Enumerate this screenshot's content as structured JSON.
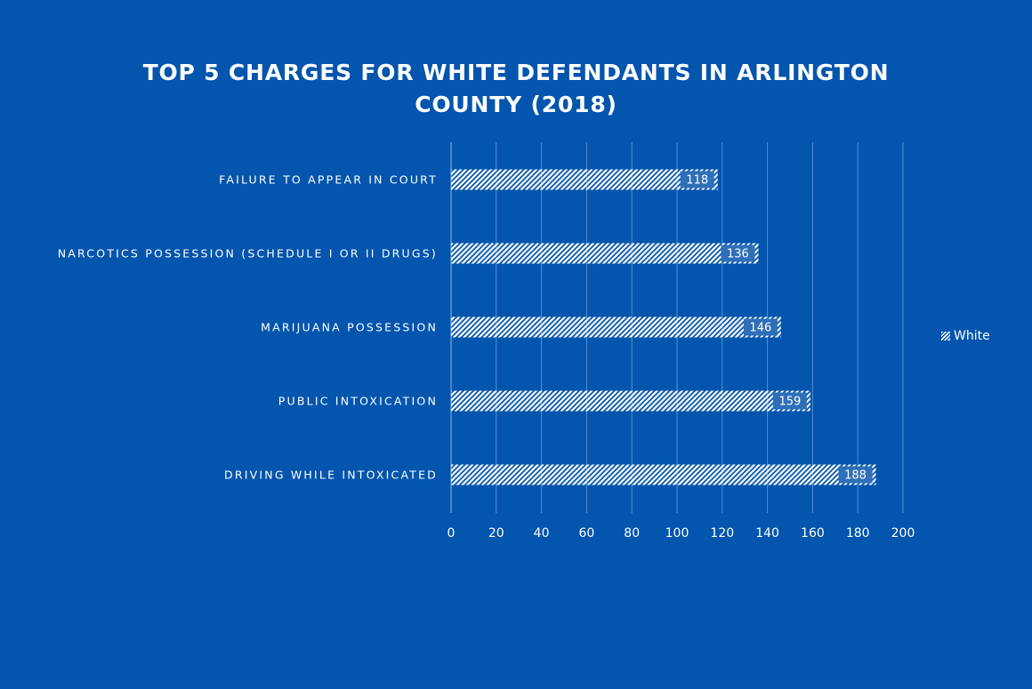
{
  "chart_data": {
    "type": "bar",
    "orientation": "horizontal",
    "title": "TOP 5 CHARGES FOR WHITE DEFENDANTS IN ARLINGTON COUNTY (2018)",
    "categories": [
      "FAILURE TO APPEAR IN COURT",
      "NARCOTICS POSSESSION (SCHEDULE I OR II DRUGS)",
      "MARIJUANA POSSESSION",
      "PUBLIC INTOXICATION",
      "DRIVING WHILE INTOXICATED"
    ],
    "series": [
      {
        "name": "White",
        "values": [
          118,
          136,
          146,
          159,
          188
        ]
      }
    ],
    "xlim": [
      0,
      200
    ],
    "xticks": [
      0,
      20,
      40,
      60,
      80,
      100,
      120,
      140,
      160,
      180,
      200
    ],
    "grid": "vertical",
    "legend_position": "right",
    "bar_pattern": "diagonal-hatch",
    "colors": {
      "background": "#0355ad",
      "bar": "#ffffff",
      "grid": "#5a8fd0",
      "axis": "#8fb8e6"
    }
  }
}
